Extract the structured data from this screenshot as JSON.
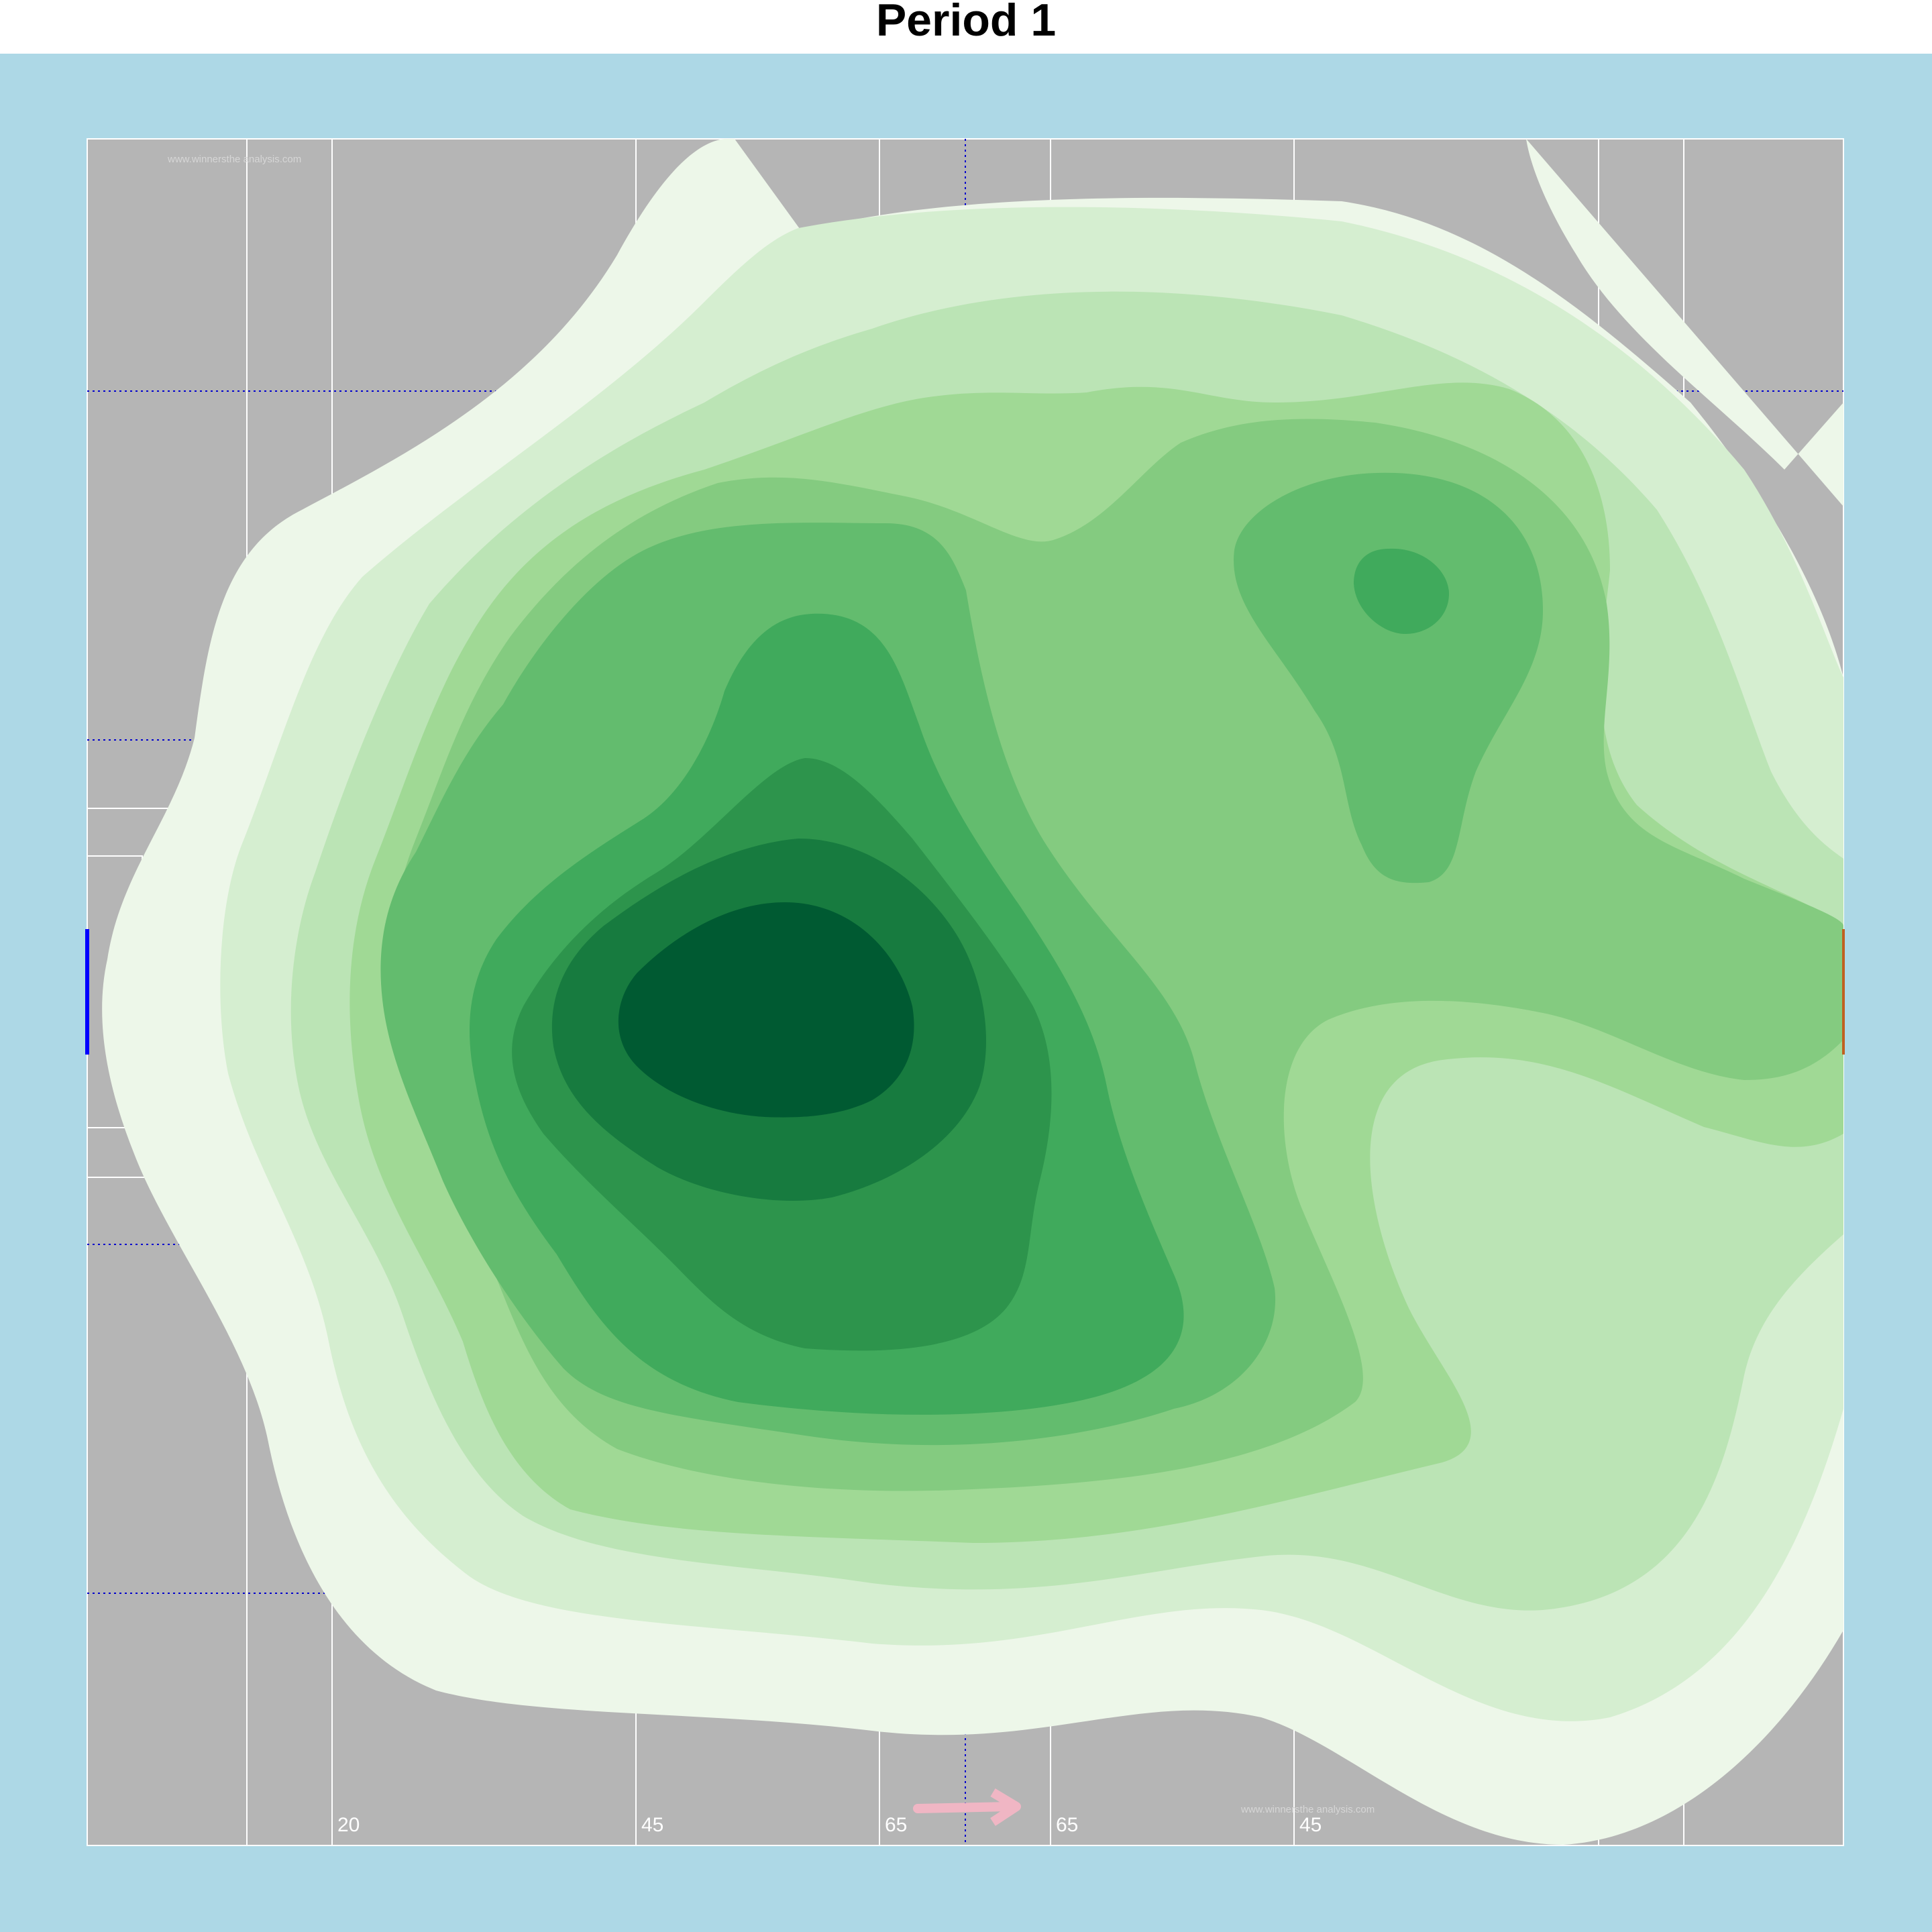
{
  "title": "Period 1",
  "chart_data": {
    "type": "contour",
    "description_free": true,
    "levels": [
      1,
      2,
      3,
      4,
      5,
      6,
      7,
      8,
      9
    ],
    "level_colors": [
      "#edf7e9",
      "#d5eed0",
      "#bbe4b5",
      "#a0d995",
      "#84cb80",
      "#63bc6e",
      "#40aa5c",
      "#2d944c",
      "#177b3f",
      "#005a32"
    ],
    "x_tick_labels": [
      "20",
      "45",
      "65",
      "65",
      "45"
    ],
    "attack_direction": "right",
    "watermark": "www.winnersthe analysis.com"
  },
  "colors": {
    "background": "#add8e6",
    "pitch": "#b5b5b5",
    "pitch_lines": "#ffffff",
    "guide_lines": "#0000cd",
    "arrow": "#f0b6c4",
    "left_goal": "#0000ff",
    "right_goal": "#c06020"
  }
}
